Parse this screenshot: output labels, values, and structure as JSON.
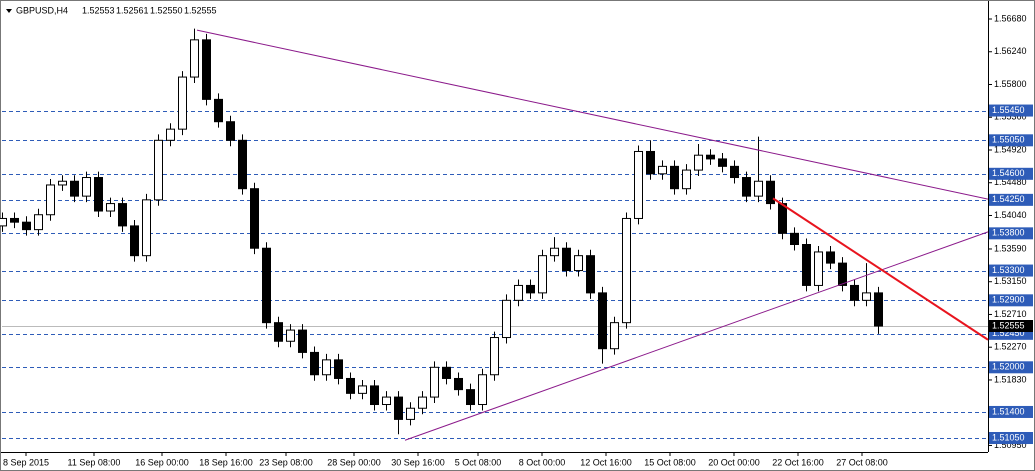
{
  "chart_data": {
    "type": "candlestick",
    "title": "GBPUSD,H4",
    "quote": [
      {
        "value": 1.52553,
        "label": "1.52553"
      },
      {
        "value": 1.52561,
        "label": "1.52561"
      },
      {
        "value": 1.5255,
        "label": "1.52550"
      },
      {
        "value": 1.52555,
        "label": "1.52555"
      }
    ],
    "xlim": [
      0,
      246.5
    ],
    "ylim": [
      1.50862,
      1.56895
    ],
    "xticks": [
      {
        "value": 6,
        "label": "8 Sep 2015"
      },
      {
        "value": 23,
        "label": "11 Sep 08:00"
      },
      {
        "value": 40,
        "label": "16 Sep 00:00"
      },
      {
        "value": 56,
        "label": "18 Sep 16:00"
      },
      {
        "value": 71,
        "label": "23 Sep 08:00"
      },
      {
        "value": 88,
        "label": "28 Sep 00:00"
      },
      {
        "value": 104,
        "label": "30 Sep 16:00"
      },
      {
        "value": 119,
        "label": "5 Oct 08:00"
      },
      {
        "value": 135,
        "label": "8 Oct 00:00"
      },
      {
        "value": 151,
        "label": "12 Oct 16:00"
      },
      {
        "value": 167,
        "label": "15 Oct 08:00"
      },
      {
        "value": 183,
        "label": "20 Oct 00:00"
      },
      {
        "value": 199,
        "label": "22 Oct 16:00"
      },
      {
        "value": 215,
        "label": "27 Oct 08:00"
      }
    ],
    "yticks": [
      {
        "value": 1.5668,
        "label": "1.56680"
      },
      {
        "value": 1.5624,
        "label": "1.56240"
      },
      {
        "value": 1.558,
        "label": "1.55800"
      },
      {
        "value": 1.5536,
        "label": "1.55360"
      },
      {
        "value": 1.5492,
        "label": "1.54920"
      },
      {
        "value": 1.5448,
        "label": "1.54480"
      },
      {
        "value": 1.5404,
        "label": "1.54040"
      },
      {
        "value": 1.5359,
        "label": "1.53590"
      },
      {
        "value": 1.5315,
        "label": "1.53150"
      },
      {
        "value": 1.5271,
        "label": "1.52710"
      },
      {
        "value": 1.5227,
        "label": "1.52270"
      },
      {
        "value": 1.5183,
        "label": "1.51830"
      },
      {
        "value": 1.5095,
        "label": "1.50950"
      }
    ],
    "levels": [
      {
        "value": 1.5545,
        "label": "1.55450"
      },
      {
        "value": 1.5505,
        "label": "1.55050"
      },
      {
        "value": 1.546,
        "label": "1.54600"
      },
      {
        "value": 1.5425,
        "label": "1.54250"
      },
      {
        "value": 1.538,
        "label": "1.53800"
      },
      {
        "value": 1.533,
        "label": "1.53300"
      },
      {
        "value": 1.529,
        "label": "1.52900"
      },
      {
        "value": 1.5245,
        "label": "1.52450"
      },
      {
        "value": 1.52,
        "label": "1.52000"
      },
      {
        "value": 1.514,
        "label": "1.51400"
      },
      {
        "value": 1.5105,
        "label": "1.51050"
      }
    ],
    "level_color": "#2e5cb8",
    "last_price": 1.52555,
    "trendlines": [
      {
        "color": "#8b1a8b",
        "x": [
          48.75,
          246.5
        ],
        "y": [
          1.5653,
          1.5426
        ]
      },
      {
        "color": "#8b1a8b",
        "x": [
          100.75,
          246.5
        ],
        "y": [
          1.5102,
          1.5382
        ]
      },
      {
        "color": "#e8141e",
        "x": [
          192.75,
          246.5
        ],
        "y": [
          1.5427,
          1.5237
        ]
      }
    ],
    "x": [
      0,
      3,
      6,
      9,
      12,
      15,
      18,
      21,
      24,
      27,
      30,
      33,
      36,
      39,
      42,
      45,
      48,
      51,
      54,
      57,
      60,
      63,
      66,
      69,
      72,
      75,
      78,
      81,
      84,
      87,
      90,
      93,
      96,
      99,
      102,
      105,
      108,
      111,
      114,
      117,
      120,
      123,
      126,
      129,
      132,
      135,
      138,
      141,
      144,
      147,
      150,
      153,
      156,
      159,
      162,
      165,
      168,
      171,
      174,
      177,
      180,
      183,
      186,
      189,
      192,
      195,
      198,
      201,
      204,
      207,
      210,
      213,
      216,
      219
    ],
    "candles": [
      [
        1.539,
        1.5408,
        1.5382,
        1.54
      ],
      [
        1.54,
        1.5408,
        1.5387,
        1.5395
      ],
      [
        1.5395,
        1.5403,
        1.5377,
        1.5385
      ],
      [
        1.5385,
        1.5413,
        1.5377,
        1.5405
      ],
      [
        1.5405,
        1.5453,
        1.5397,
        1.5445
      ],
      [
        1.5445,
        1.5458,
        1.5437,
        1.545
      ],
      [
        1.545,
        1.5458,
        1.5422,
        1.543
      ],
      [
        1.543,
        1.5463,
        1.5422,
        1.5455
      ],
      [
        1.5455,
        1.5463,
        1.5402,
        1.541
      ],
      [
        1.541,
        1.5428,
        1.5402,
        1.542
      ],
      [
        1.542,
        1.5428,
        1.5382,
        1.539
      ],
      [
        1.539,
        1.5398,
        1.5342,
        1.535
      ],
      [
        1.535,
        1.5433,
        1.5342,
        1.5425
      ],
      [
        1.5425,
        1.5513,
        1.5417,
        1.5505
      ],
      [
        1.5505,
        1.5528,
        1.5497,
        1.552
      ],
      [
        1.552,
        1.5598,
        1.5512,
        1.559
      ],
      [
        1.559,
        1.5655,
        1.5582,
        1.564
      ],
      [
        1.564,
        1.5648,
        1.5552,
        1.556
      ],
      [
        1.556,
        1.5568,
        1.5522,
        1.553
      ],
      [
        1.553,
        1.5538,
        1.5497,
        1.5505
      ],
      [
        1.5505,
        1.5513,
        1.5432,
        1.544
      ],
      [
        1.544,
        1.5448,
        1.5352,
        1.536
      ],
      [
        1.536,
        1.5368,
        1.5252,
        1.526
      ],
      [
        1.526,
        1.5268,
        1.5227,
        1.5235
      ],
      [
        1.5235,
        1.5258,
        1.5227,
        1.525
      ],
      [
        1.525,
        1.5258,
        1.5212,
        1.522
      ],
      [
        1.522,
        1.5228,
        1.5182,
        1.519
      ],
      [
        1.519,
        1.5218,
        1.5182,
        1.521
      ],
      [
        1.521,
        1.5218,
        1.5177,
        1.5185
      ],
      [
        1.5185,
        1.5193,
        1.5157,
        1.5165
      ],
      [
        1.5165,
        1.5183,
        1.5157,
        1.5175
      ],
      [
        1.5175,
        1.5183,
        1.5142,
        1.515
      ],
      [
        1.515,
        1.5168,
        1.5142,
        1.516
      ],
      [
        1.516,
        1.5168,
        1.511,
        1.513
      ],
      [
        1.513,
        1.5153,
        1.5122,
        1.5145
      ],
      [
        1.5145,
        1.5168,
        1.5137,
        1.516
      ],
      [
        1.516,
        1.5208,
        1.5152,
        1.52
      ],
      [
        1.52,
        1.5208,
        1.5177,
        1.5185
      ],
      [
        1.5185,
        1.5193,
        1.5162,
        1.517
      ],
      [
        1.517,
        1.5178,
        1.5142,
        1.515
      ],
      [
        1.515,
        1.5198,
        1.5142,
        1.519
      ],
      [
        1.519,
        1.5248,
        1.5182,
        1.524
      ],
      [
        1.524,
        1.5298,
        1.5232,
        1.529
      ],
      [
        1.529,
        1.5318,
        1.5282,
        1.531
      ],
      [
        1.531,
        1.5318,
        1.5292,
        1.53
      ],
      [
        1.53,
        1.5358,
        1.5292,
        1.535
      ],
      [
        1.535,
        1.5375,
        1.5342,
        1.536
      ],
      [
        1.536,
        1.5368,
        1.5322,
        1.533
      ],
      [
        1.533,
        1.5358,
        1.5322,
        1.535
      ],
      [
        1.535,
        1.5358,
        1.5292,
        1.53
      ],
      [
        1.53,
        1.5308,
        1.5205,
        1.5225
      ],
      [
        1.5225,
        1.5268,
        1.5217,
        1.526
      ],
      [
        1.526,
        1.5408,
        1.5252,
        1.54
      ],
      [
        1.54,
        1.5498,
        1.5392,
        1.549
      ],
      [
        1.549,
        1.5505,
        1.5452,
        1.546
      ],
      [
        1.546,
        1.5478,
        1.5452,
        1.547
      ],
      [
        1.547,
        1.5478,
        1.5432,
        1.544
      ],
      [
        1.544,
        1.5473,
        1.5432,
        1.5465
      ],
      [
        1.5465,
        1.55,
        1.5457,
        1.5485
      ],
      [
        1.5485,
        1.5493,
        1.5472,
        1.548
      ],
      [
        1.548,
        1.5488,
        1.5462,
        1.547
      ],
      [
        1.547,
        1.5478,
        1.5447,
        1.5455
      ],
      [
        1.5455,
        1.5463,
        1.5422,
        1.543
      ],
      [
        1.543,
        1.551,
        1.5422,
        1.545
      ],
      [
        1.545,
        1.5458,
        1.5412,
        1.542
      ],
      [
        1.542,
        1.5428,
        1.5372,
        1.538
      ],
      [
        1.538,
        1.5388,
        1.5357,
        1.5365
      ],
      [
        1.5365,
        1.5373,
        1.5302,
        1.531
      ],
      [
        1.531,
        1.5363,
        1.5302,
        1.5355
      ],
      [
        1.5355,
        1.5363,
        1.5332,
        1.534
      ],
      [
        1.534,
        1.5348,
        1.5302,
        1.531
      ],
      [
        1.531,
        1.5318,
        1.5282,
        1.529
      ],
      [
        1.529,
        1.534,
        1.5282,
        1.53
      ],
      [
        1.53,
        1.5308,
        1.5245,
        1.52555
      ]
    ]
  }
}
